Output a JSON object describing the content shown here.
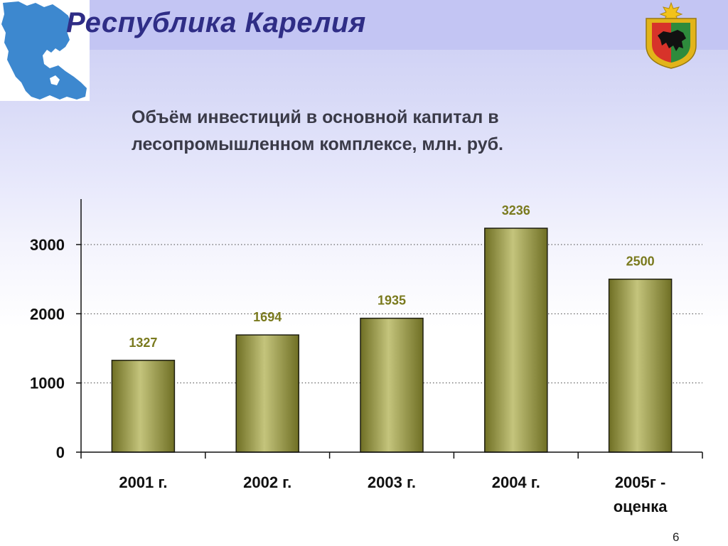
{
  "header": {
    "title": "Республика Карелия"
  },
  "slide": {
    "title_lines": [
      "Объём инвестиций  в основной капитал в",
      "лесопромышленном комплексе, млн. руб."
    ],
    "page_number": "6"
  },
  "icons": {
    "map": "karelia-map-icon",
    "coat_of_arms": "karelia-coat-of-arms-icon"
  },
  "colors": {
    "header_band": "#c3c5f3",
    "title_text": "#2f2d86",
    "bar_fill": "#8d8d3a",
    "bar_highlight": "#c4c47c",
    "bar_edge": "#1e1e10",
    "data_label": "#7a7a1e",
    "map_fill": "#3d88cf"
  },
  "chart_data": {
    "type": "bar",
    "title": "Объём инвестиций  в основной капитал в лесопромышленном комплексе, млн. руб.",
    "categories": [
      [
        "2001 г."
      ],
      [
        "2002 г."
      ],
      [
        "2003 г."
      ],
      [
        "2004 г."
      ],
      [
        "2005г -",
        "оценка"
      ]
    ],
    "values": [
      1327,
      1694,
      1935,
      3236,
      2500
    ],
    "yticks": [
      0,
      1000,
      2000,
      3000
    ],
    "ylim": [
      0,
      3600
    ],
    "xlabel": "",
    "ylabel": "",
    "grid": "horizontal-dotted",
    "legend": "none"
  }
}
